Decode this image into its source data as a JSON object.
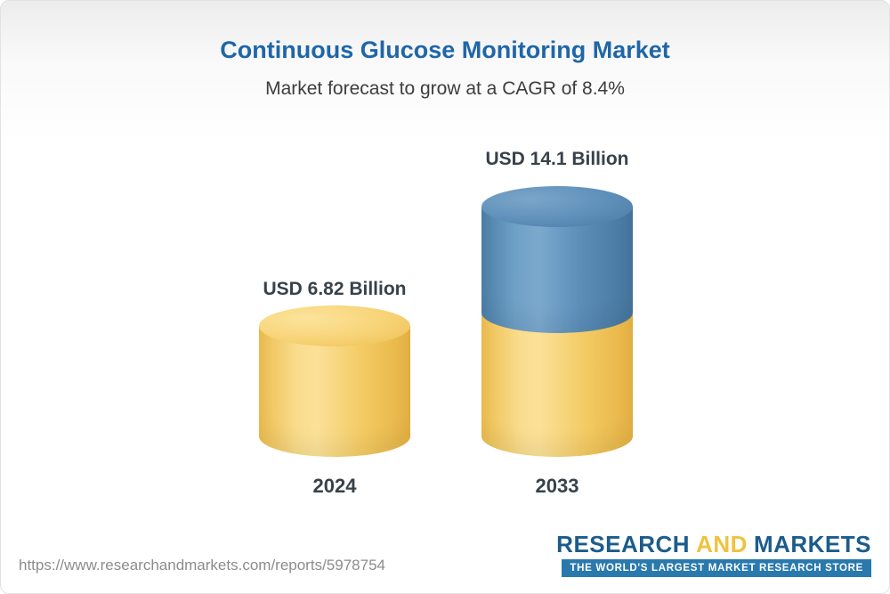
{
  "header": {
    "title": "Continuous Glucose Monitoring Market",
    "subtitle": "Market forecast to grow at a CAGR of 8.4%"
  },
  "chart_data": {
    "type": "bar",
    "variant": "3d-cylinder-stacked",
    "title": "Continuous Glucose Monitoring Market",
    "subtitle": "Market forecast to grow at a CAGR of 8.4%",
    "cagr_percent": 8.4,
    "unit": "USD Billion",
    "categories": [
      "2024",
      "2033"
    ],
    "values": [
      6.82,
      14.1
    ],
    "bar_labels": [
      "USD 6.82 Billion",
      "USD 14.1 Billion"
    ],
    "grid": false,
    "legend_position": "none",
    "colors": {
      "base_segment": "#F6CE6B",
      "growth_segment": "#5B8DB8",
      "title_text": "#1F66A8",
      "label_text": "#37424A"
    }
  },
  "footer": {
    "url": "https://www.researchandmarkets.com/reports/5978754",
    "logo": {
      "research": "RESEARCH",
      "and": "AND",
      "markets": "MARKETS",
      "tagline": "THE WORLD'S LARGEST MARKET RESEARCH STORE"
    }
  }
}
